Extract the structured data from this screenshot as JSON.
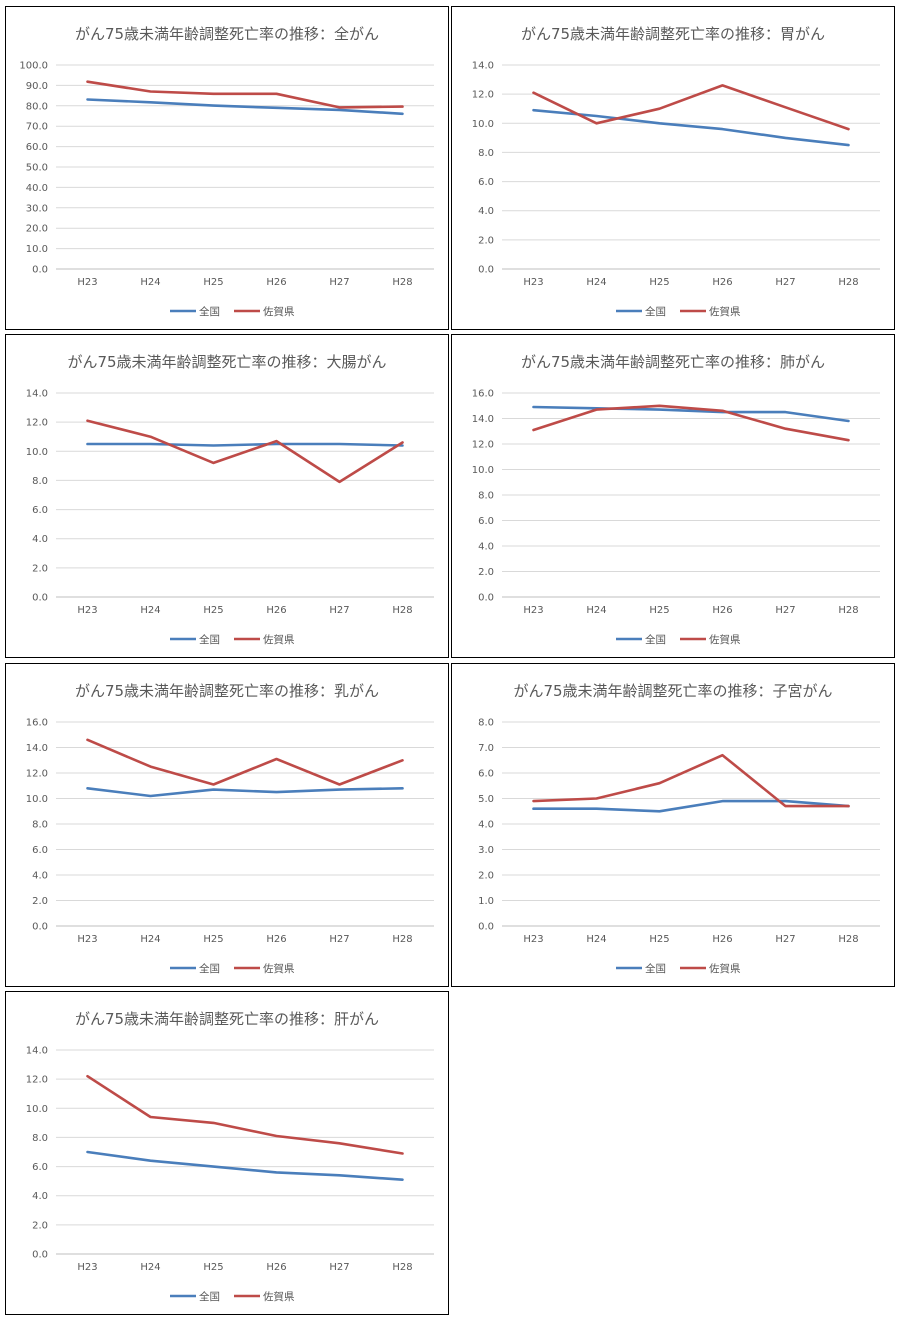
{
  "legend_labels": [
    "全国",
    "佐賀県"
  ],
  "colors": {
    "national": "#4a7ebb",
    "saga": "#be4b48",
    "grid": "#d9d9d9",
    "axis": "#bfbfbf",
    "text": "#595959"
  },
  "chart_data": [
    {
      "type": "line",
      "title": "がん75歳未満年齢調整死亡率の推移：全がん",
      "categories": [
        "H23",
        "H24",
        "H25",
        "H26",
        "H27",
        "H28"
      ],
      "y_ticks": [
        "0.0",
        "10.0",
        "20.0",
        "30.0",
        "40.0",
        "50.0",
        "60.0",
        "70.0",
        "80.0",
        "90.0",
        "100.0"
      ],
      "ylim": [
        0,
        100
      ],
      "grid": true,
      "legend_position": "bottom",
      "series": [
        {
          "name": "全国",
          "values": [
            83.1,
            81.7,
            80.1,
            79.0,
            78.0,
            76.1
          ]
        },
        {
          "name": "佐賀県",
          "values": [
            91.8,
            87.0,
            85.9,
            85.9,
            79.2,
            79.6
          ]
        }
      ]
    },
    {
      "type": "line",
      "title": "がん75歳未満年齢調整死亡率の推移：胃がん",
      "categories": [
        "H23",
        "H24",
        "H25",
        "H26",
        "H27",
        "H28"
      ],
      "y_ticks": [
        "0.0",
        "2.0",
        "4.0",
        "6.0",
        "8.0",
        "10.0",
        "12.0",
        "14.0"
      ],
      "ylim": [
        0,
        14
      ],
      "grid": true,
      "legend_position": "bottom",
      "series": [
        {
          "name": "全国",
          "values": [
            10.9,
            10.5,
            10.0,
            9.6,
            9.0,
            8.5
          ]
        },
        {
          "name": "佐賀県",
          "values": [
            12.1,
            10.0,
            11.0,
            12.6,
            11.1,
            9.6
          ]
        }
      ]
    },
    {
      "type": "line",
      "title": "がん75歳未満年齢調整死亡率の推移：大腸がん",
      "categories": [
        "H23",
        "H24",
        "H25",
        "H26",
        "H27",
        "H28"
      ],
      "y_ticks": [
        "0.0",
        "2.0",
        "4.0",
        "6.0",
        "8.0",
        "10.0",
        "12.0",
        "14.0"
      ],
      "ylim": [
        0,
        14
      ],
      "grid": true,
      "legend_position": "bottom",
      "series": [
        {
          "name": "全国",
          "values": [
            10.5,
            10.5,
            10.4,
            10.5,
            10.5,
            10.4
          ]
        },
        {
          "name": "佐賀県",
          "values": [
            12.1,
            11.0,
            9.2,
            10.7,
            7.9,
            10.6
          ]
        }
      ]
    },
    {
      "type": "line",
      "title": "がん75歳未満年齢調整死亡率の推移：肺がん",
      "categories": [
        "H23",
        "H24",
        "H25",
        "H26",
        "H27",
        "H28"
      ],
      "y_ticks": [
        "0.0",
        "2.0",
        "4.0",
        "6.0",
        "8.0",
        "10.0",
        "12.0",
        "14.0",
        "16.0"
      ],
      "ylim": [
        0,
        16
      ],
      "grid": true,
      "legend_position": "bottom",
      "series": [
        {
          "name": "全国",
          "values": [
            14.9,
            14.8,
            14.7,
            14.5,
            14.5,
            13.8
          ]
        },
        {
          "name": "佐賀県",
          "values": [
            13.1,
            14.7,
            15.0,
            14.6,
            13.2,
            12.3
          ]
        }
      ]
    },
    {
      "type": "line",
      "title": "がん75歳未満年齢調整死亡率の推移：乳がん",
      "categories": [
        "H23",
        "H24",
        "H25",
        "H26",
        "H27",
        "H28"
      ],
      "y_ticks": [
        "0.0",
        "2.0",
        "4.0",
        "6.0",
        "8.0",
        "10.0",
        "12.0",
        "14.0",
        "16.0"
      ],
      "ylim": [
        0,
        16
      ],
      "grid": true,
      "legend_position": "bottom",
      "series": [
        {
          "name": "全国",
          "values": [
            10.8,
            10.2,
            10.7,
            10.5,
            10.7,
            10.8
          ]
        },
        {
          "name": "佐賀県",
          "values": [
            14.6,
            12.5,
            11.1,
            13.1,
            11.1,
            13.0
          ]
        }
      ]
    },
    {
      "type": "line",
      "title": "がん75歳未満年齢調整死亡率の推移：子宮がん",
      "categories": [
        "H23",
        "H24",
        "H25",
        "H26",
        "H27",
        "H28"
      ],
      "y_ticks": [
        "0.0",
        "1.0",
        "2.0",
        "3.0",
        "4.0",
        "5.0",
        "6.0",
        "7.0",
        "8.0"
      ],
      "ylim": [
        0,
        8
      ],
      "grid": true,
      "legend_position": "bottom",
      "series": [
        {
          "name": "全国",
          "values": [
            4.6,
            4.6,
            4.5,
            4.9,
            4.9,
            4.7
          ]
        },
        {
          "name": "佐賀県",
          "values": [
            4.9,
            5.0,
            5.6,
            6.7,
            4.7,
            4.7
          ]
        }
      ]
    },
    {
      "type": "line",
      "title": "がん75歳未満年齢調整死亡率の推移：肝がん",
      "categories": [
        "H23",
        "H24",
        "H25",
        "H26",
        "H27",
        "H28"
      ],
      "y_ticks": [
        "0.0",
        "2.0",
        "4.0",
        "6.0",
        "8.0",
        "10.0",
        "12.0",
        "14.0"
      ],
      "ylim": [
        0,
        14
      ],
      "grid": true,
      "legend_position": "bottom",
      "series": [
        {
          "name": "全国",
          "values": [
            7.0,
            6.4,
            6.0,
            5.6,
            5.4,
            5.1
          ]
        },
        {
          "name": "佐賀県",
          "values": [
            12.2,
            9.4,
            9.0,
            8.1,
            7.6,
            6.9
          ]
        }
      ]
    }
  ]
}
